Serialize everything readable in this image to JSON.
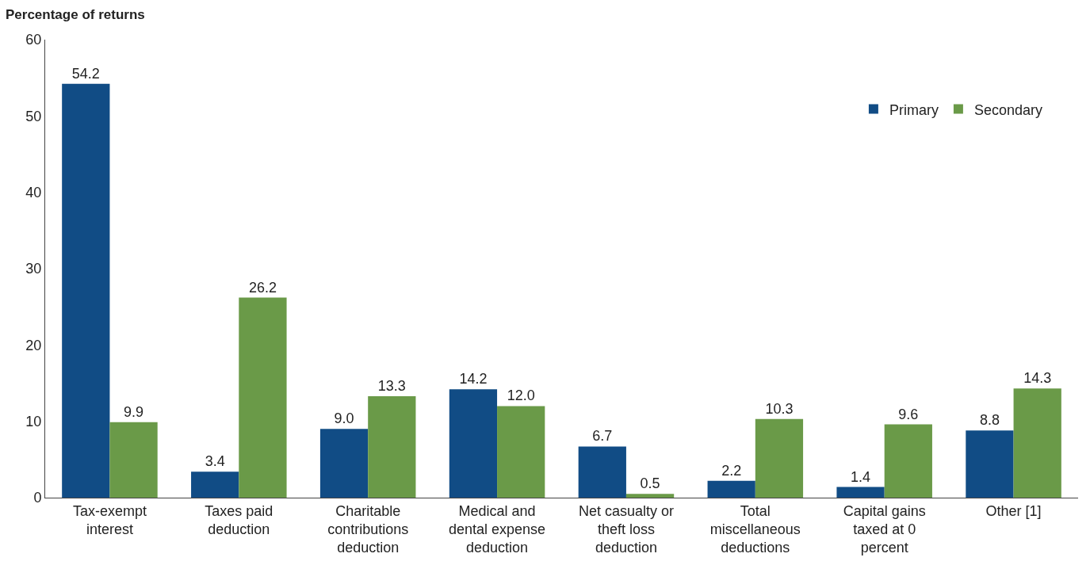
{
  "chart_data": {
    "type": "bar",
    "ylabel": "Percentage of returns",
    "categories": [
      "Tax-exempt\ninterest",
      "Taxes paid\ndeduction",
      "Charitable\ncontributions\ndeduction",
      "Medical and\ndental expense\ndeduction",
      "Net casualty or\ntheft loss\ndeduction",
      "Total\nmiscellaneous\ndeductions",
      "Capital gains\ntaxed at 0\npercent",
      "Other [1]"
    ],
    "series": [
      {
        "name": "Primary",
        "color": "#114c85",
        "values": [
          54.2,
          3.4,
          9.0,
          14.2,
          6.7,
          2.2,
          1.4,
          8.8
        ],
        "value_labels": [
          "54.2",
          "3.4",
          "9.0",
          "14.2",
          "6.7",
          "2.2",
          "1.4",
          "8.8"
        ]
      },
      {
        "name": "Secondary",
        "color": "#6a9a48",
        "values": [
          9.9,
          26.2,
          13.3,
          12.0,
          0.5,
          10.3,
          9.6,
          14.3
        ],
        "value_labels": [
          "9.9",
          "26.2",
          "13.3",
          "12.0",
          "0.5",
          "10.3",
          "9.6",
          "14.3"
        ]
      }
    ],
    "ylim": [
      0,
      60
    ],
    "yticks": [
      0,
      10,
      20,
      30,
      40,
      50,
      60
    ],
    "legend": "top right"
  }
}
